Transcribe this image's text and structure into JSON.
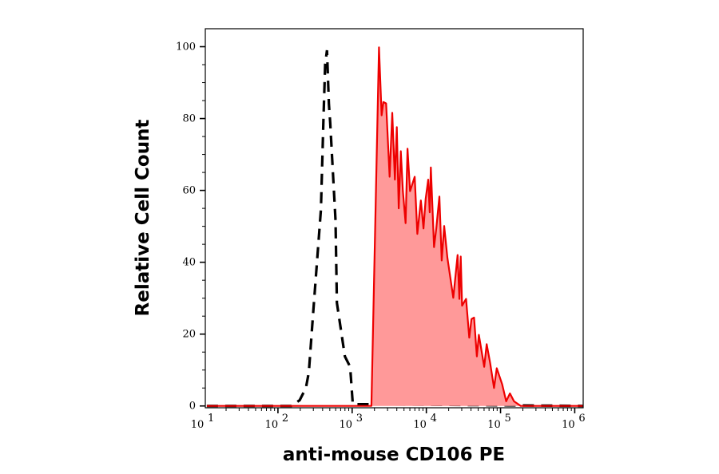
{
  "chart_data": {
    "type": "area",
    "title": "",
    "xlabel": "anti-mouse CD106 PE",
    "ylabel": "Relative Cell Count",
    "x_scale": "log",
    "xlim": [
      10.5,
      1300000
    ],
    "ylim": [
      -0.5,
      105
    ],
    "x_ticks": [
      10,
      100,
      1000,
      10000,
      100000,
      1000000
    ],
    "x_tick_labels": [
      {
        "base": "10",
        "exp": "1"
      },
      {
        "base": "10",
        "exp": "2"
      },
      {
        "base": "10",
        "exp": "3"
      },
      {
        "base": "10",
        "exp": "4"
      },
      {
        "base": "10",
        "exp": "5"
      },
      {
        "base": "10",
        "exp": "6"
      }
    ],
    "y_ticks": [
      0,
      20,
      40,
      60,
      80,
      100
    ],
    "y_tick_labels": [
      "0",
      "20",
      "40",
      "60",
      "80",
      "100"
    ],
    "grid": false,
    "series": [
      {
        "style": "dashed-line",
        "color": "#000000",
        "x": [
          11,
          152,
          196,
          238,
          261,
          296,
          379,
          411,
          433,
          458,
          486,
          506,
          597,
          623,
          798,
          940,
          1020,
          1300000
        ],
        "y": [
          0,
          0,
          1.6,
          5,
          9.4,
          25,
          54.6,
          80,
          95,
          99,
          84,
          79,
          51.6,
          28.7,
          13.8,
          10.9,
          0.5,
          0
        ]
      },
      {
        "style": "filled",
        "color": "#ee0000",
        "fill": "#ff9999",
        "x": [
          11,
          1820,
          2300,
          2500,
          2640,
          2870,
          3200,
          3470,
          3770,
          4000,
          4240,
          4530,
          4830,
          5260,
          5570,
          6040,
          6970,
          7560,
          8430,
          9150,
          9780,
          10600,
          11100,
          11500,
          12700,
          13600,
          15000,
          16100,
          17400,
          19200,
          23100,
          26400,
          27900,
          29100,
          30300,
          34300,
          37900,
          40600,
          44000,
          47900,
          51000,
          60300,
          65000,
          72300,
          81800,
          89000,
          105000,
          119000,
          134000,
          152000,
          187000,
          1300000
        ],
        "y": [
          0,
          0,
          99.8,
          80.9,
          84.6,
          84.2,
          63.8,
          81.6,
          63,
          77.6,
          55,
          70.9,
          59.8,
          50.9,
          71.6,
          59.8,
          63.8,
          47.9,
          57.2,
          49.4,
          57.6,
          63,
          53.9,
          66.4,
          44.2,
          49.4,
          58.3,
          40.5,
          50.1,
          41.3,
          30.1,
          42,
          29.8,
          41.6,
          27.9,
          29.8,
          19,
          24.2,
          24.6,
          13.8,
          19.8,
          10.9,
          17.2,
          12,
          5,
          10.5,
          6.1,
          1.3,
          3.5,
          1.3,
          0,
          0
        ]
      }
    ]
  }
}
